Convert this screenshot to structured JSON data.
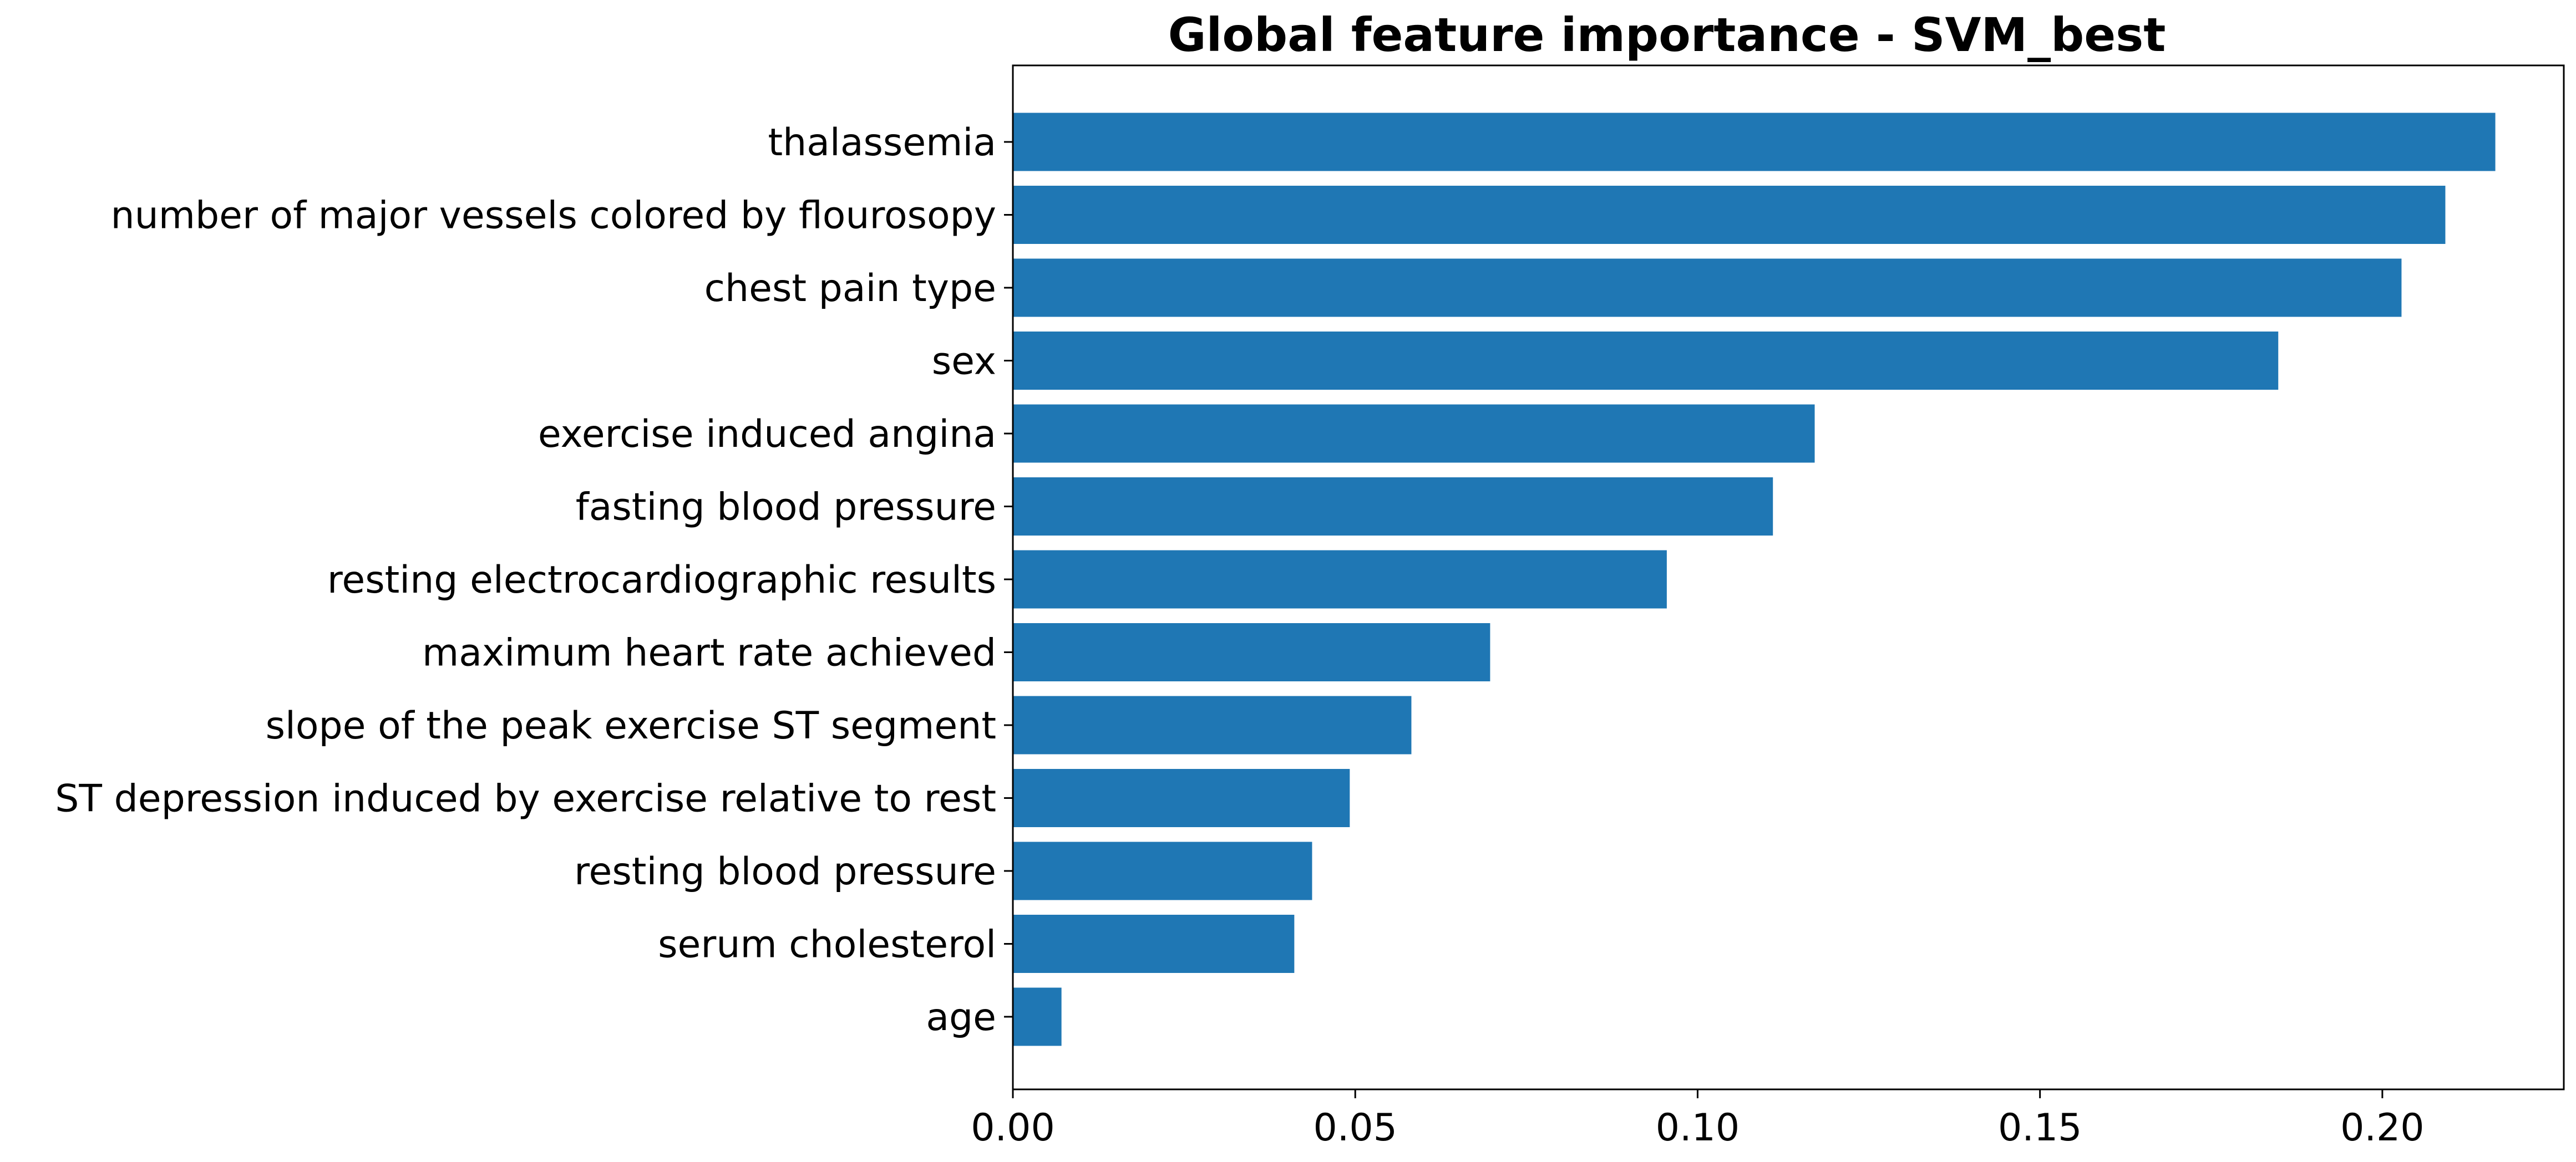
{
  "chart_data": {
    "type": "bar",
    "orientation": "horizontal",
    "title": "Global feature importance - SVM_best",
    "xlabel": "",
    "ylabel": "",
    "categories": [
      "thalassemia",
      "number of major vessels colored by flourosopy",
      "chest pain type",
      "sex",
      "exercise induced angina",
      "fasting blood pressure",
      "resting electrocardiographic results",
      "maximum heart rate achieved",
      "slope of the peak exercise ST segment",
      "ST depression induced by exercise relative to rest",
      "resting blood pressure",
      "serum cholesterol",
      "age"
    ],
    "values": [
      0.2165,
      0.2092,
      0.2028,
      0.1848,
      0.1171,
      0.111,
      0.0955,
      0.0697,
      0.0582,
      0.0492,
      0.0437,
      0.0411,
      0.0071
    ],
    "xlim": [
      0.0,
      0.2265
    ],
    "xticks": [
      "0.00",
      "0.05",
      "0.10",
      "0.15",
      "0.20"
    ],
    "bar_color": "#1f77b4",
    "grid": false,
    "legend": "none"
  }
}
